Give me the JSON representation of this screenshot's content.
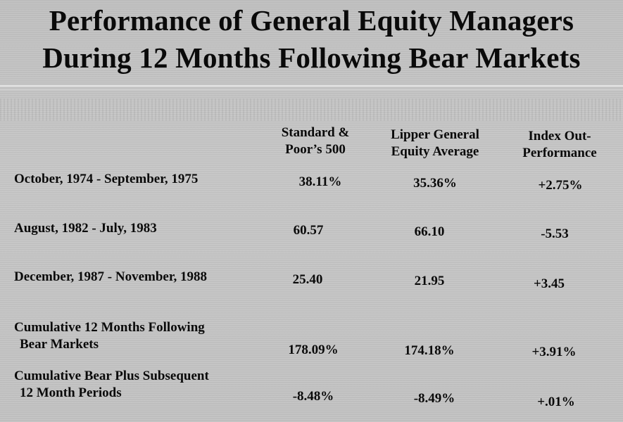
{
  "title": {
    "line1": "Performance of General Equity Managers",
    "line2": "During 12 Months Following Bear Markets"
  },
  "columns": [
    {
      "line1": "Standard &",
      "line2": "Poor’s 500"
    },
    {
      "line1": "Lipper General",
      "line2": "Equity Average"
    },
    {
      "line1": "Index Out-",
      "line2": "Performance"
    }
  ],
  "rows": [
    {
      "label1": "October, 1974 - September, 1975",
      "label2": "",
      "values": [
        "38.11%",
        "35.36%",
        "+2.75%"
      ]
    },
    {
      "label1": "August, 1982 - July, 1983",
      "label2": "",
      "values": [
        "60.57",
        "66.10",
        "-5.53"
      ]
    },
    {
      "label1": "December, 1987 - November, 1988",
      "label2": "",
      "values": [
        "25.40",
        "21.95",
        "+3.45"
      ]
    },
    {
      "label1": "Cumulative 12 Months Following",
      "label2": "Bear Markets",
      "values": [
        "178.09%",
        "174.18%",
        "+3.91%"
      ]
    },
    {
      "label1": "Cumulative Bear Plus Subsequent",
      "label2": "12 Month Periods",
      "values": [
        "-8.48%",
        "-8.49%",
        "+.01%"
      ]
    }
  ]
}
